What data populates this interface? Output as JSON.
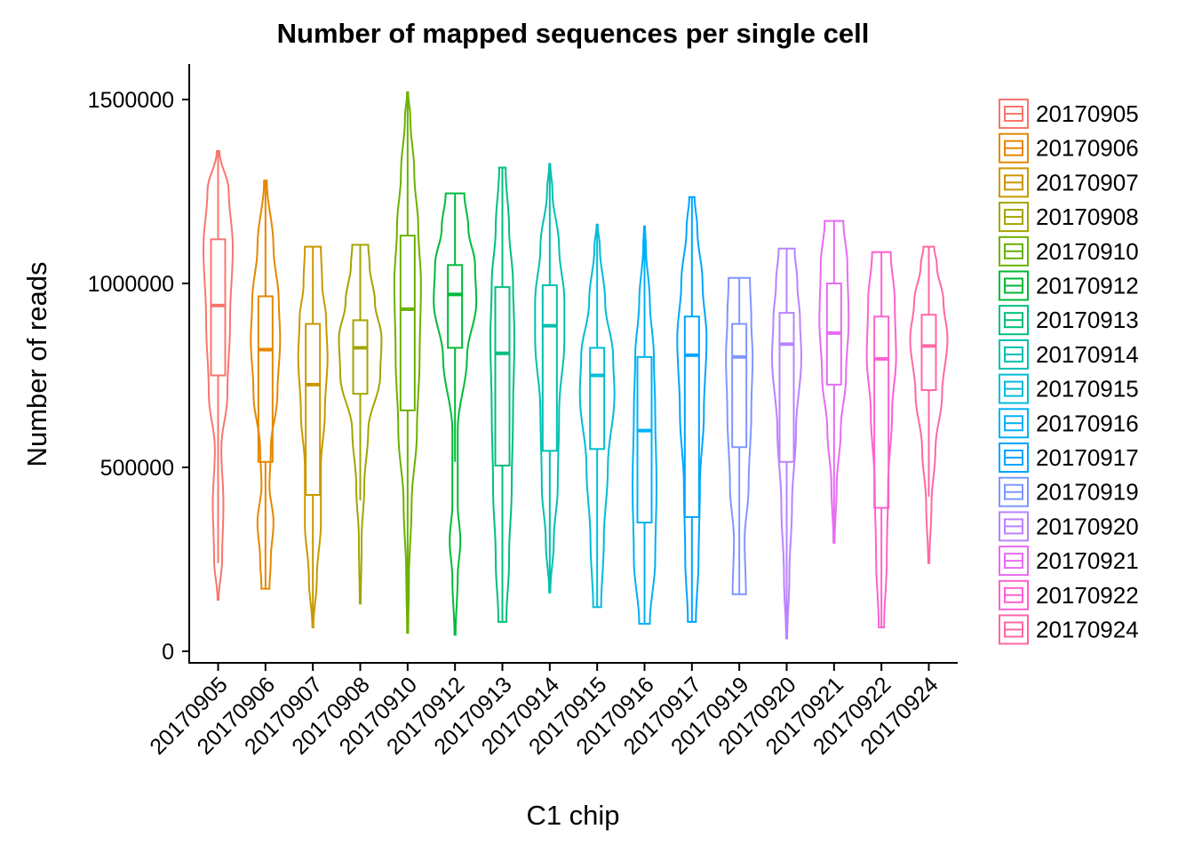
{
  "chart_data": {
    "type": "violin",
    "title": "Number of mapped sequences per single cell",
    "xlabel": "C1 chip",
    "ylabel": "Number of reads",
    "ylim": [
      -30000,
      1600000
    ],
    "yticks": [
      0,
      500000,
      1000000,
      1500000
    ],
    "ytick_labels": [
      "0",
      "500000",
      "1000000",
      "1500000"
    ],
    "legend_position": "right",
    "categories": [
      "20170905",
      "20170906",
      "20170907",
      "20170908",
      "20170910",
      "20170912",
      "20170913",
      "20170914",
      "20170915",
      "20170916",
      "20170917",
      "20170919",
      "20170920",
      "20170921",
      "20170922",
      "20170924"
    ],
    "colors": [
      "#F8766D",
      "#E58700",
      "#C99800",
      "#A3A500",
      "#6BB100",
      "#00BA38",
      "#00BF7D",
      "#00C0AF",
      "#00BCD8",
      "#00B0F6",
      "#00A5FF",
      "#7F96FF",
      "#B983FF",
      "#E76BF3",
      "#FD61D1",
      "#FF67A4"
    ],
    "series": [
      {
        "name": "20170905",
        "min": 140000,
        "q1": 750000,
        "median": 940000,
        "q3": 1120000,
        "max": 1360000,
        "whisker_low": 240000,
        "whisker_high": 1360000,
        "violin": [
          [
            140000,
            0.02
          ],
          [
            250000,
            0.15
          ],
          [
            400000,
            0.2
          ],
          [
            550000,
            0.12
          ],
          [
            700000,
            0.35
          ],
          [
            900000,
            0.45
          ],
          [
            1100000,
            0.55
          ],
          [
            1250000,
            0.4
          ],
          [
            1360000,
            0.05
          ]
        ]
      },
      {
        "name": "20170906",
        "min": 170000,
        "q1": 515000,
        "median": 820000,
        "q3": 965000,
        "max": 1280000,
        "whisker_low": 170000,
        "whisker_high": 1280000,
        "violin": [
          [
            170000,
            0.15
          ],
          [
            250000,
            0.2
          ],
          [
            350000,
            0.3
          ],
          [
            450000,
            0.15
          ],
          [
            550000,
            0.2
          ],
          [
            700000,
            0.45
          ],
          [
            850000,
            0.55
          ],
          [
            950000,
            0.5
          ],
          [
            1100000,
            0.3
          ],
          [
            1280000,
            0.05
          ]
        ]
      },
      {
        "name": "20170907",
        "min": 65000,
        "q1": 425000,
        "median": 725000,
        "q3": 890000,
        "max": 1100000,
        "whisker_low": 65000,
        "whisker_high": 1100000,
        "violin": [
          [
            65000,
            0.02
          ],
          [
            200000,
            0.15
          ],
          [
            350000,
            0.3
          ],
          [
            500000,
            0.3
          ],
          [
            650000,
            0.45
          ],
          [
            800000,
            0.55
          ],
          [
            900000,
            0.5
          ],
          [
            1000000,
            0.35
          ],
          [
            1100000,
            0.3
          ]
        ]
      },
      {
        "name": "20170908",
        "min": 130000,
        "q1": 700000,
        "median": 825000,
        "q3": 900000,
        "max": 1105000,
        "whisker_low": 410000,
        "whisker_high": 1105000,
        "violin": [
          [
            130000,
            0.02
          ],
          [
            300000,
            0.05
          ],
          [
            450000,
            0.15
          ],
          [
            600000,
            0.3
          ],
          [
            750000,
            0.75
          ],
          [
            850000,
            0.8
          ],
          [
            950000,
            0.55
          ],
          [
            1050000,
            0.35
          ],
          [
            1105000,
            0.3
          ]
        ]
      },
      {
        "name": "20170910",
        "min": 50000,
        "q1": 655000,
        "median": 930000,
        "q3": 1130000,
        "max": 1520000,
        "whisker_low": 50000,
        "whisker_high": 1520000,
        "violin": [
          [
            50000,
            0.02
          ],
          [
            200000,
            0.05
          ],
          [
            400000,
            0.15
          ],
          [
            600000,
            0.35
          ],
          [
            800000,
            0.45
          ],
          [
            1000000,
            0.5
          ],
          [
            1150000,
            0.4
          ],
          [
            1300000,
            0.25
          ],
          [
            1450000,
            0.1
          ],
          [
            1520000,
            0.02
          ]
        ]
      },
      {
        "name": "20170912",
        "min": 45000,
        "q1": 825000,
        "median": 970000,
        "q3": 1050000,
        "max": 1245000,
        "whisker_low": 515000,
        "whisker_high": 1245000,
        "violin": [
          [
            45000,
            0.02
          ],
          [
            200000,
            0.1
          ],
          [
            300000,
            0.2
          ],
          [
            400000,
            0.1
          ],
          [
            600000,
            0.1
          ],
          [
            800000,
            0.45
          ],
          [
            950000,
            0.8
          ],
          [
            1050000,
            0.75
          ],
          [
            1150000,
            0.5
          ],
          [
            1245000,
            0.35
          ]
        ]
      },
      {
        "name": "20170913",
        "min": 80000,
        "q1": 505000,
        "median": 810000,
        "q3": 990000,
        "max": 1315000,
        "whisker_low": 80000,
        "whisker_high": 1315000,
        "violin": [
          [
            80000,
            0.15
          ],
          [
            250000,
            0.25
          ],
          [
            450000,
            0.35
          ],
          [
            650000,
            0.4
          ],
          [
            850000,
            0.45
          ],
          [
            1000000,
            0.4
          ],
          [
            1150000,
            0.25
          ],
          [
            1315000,
            0.12
          ]
        ]
      },
      {
        "name": "20170914",
        "min": 160000,
        "q1": 545000,
        "median": 885000,
        "q3": 995000,
        "max": 1325000,
        "whisker_low": 160000,
        "whisker_high": 1325000,
        "violin": [
          [
            160000,
            0.02
          ],
          [
            300000,
            0.15
          ],
          [
            450000,
            0.3
          ],
          [
            650000,
            0.35
          ],
          [
            850000,
            0.55
          ],
          [
            950000,
            0.55
          ],
          [
            1100000,
            0.35
          ],
          [
            1250000,
            0.1
          ],
          [
            1325000,
            0.02
          ]
        ]
      },
      {
        "name": "20170915",
        "min": 120000,
        "q1": 550000,
        "median": 750000,
        "q3": 825000,
        "max": 1160000,
        "whisker_low": 120000,
        "whisker_high": 1160000,
        "violin": [
          [
            120000,
            0.15
          ],
          [
            300000,
            0.25
          ],
          [
            500000,
            0.4
          ],
          [
            700000,
            0.65
          ],
          [
            800000,
            0.6
          ],
          [
            950000,
            0.3
          ],
          [
            1100000,
            0.1
          ],
          [
            1160000,
            0.02
          ]
        ]
      },
      {
        "name": "20170916",
        "min": 75000,
        "q1": 350000,
        "median": 600000,
        "q3": 800000,
        "max": 1155000,
        "whisker_low": 75000,
        "whisker_high": 1155000,
        "violin": [
          [
            75000,
            0.2
          ],
          [
            250000,
            0.4
          ],
          [
            450000,
            0.45
          ],
          [
            650000,
            0.4
          ],
          [
            800000,
            0.35
          ],
          [
            950000,
            0.2
          ],
          [
            1100000,
            0.05
          ],
          [
            1155000,
            0.02
          ]
        ]
      },
      {
        "name": "20170917",
        "min": 80000,
        "q1": 365000,
        "median": 805000,
        "q3": 910000,
        "max": 1235000,
        "whisker_low": 80000,
        "whisker_high": 1235000,
        "violin": [
          [
            80000,
            0.15
          ],
          [
            250000,
            0.25
          ],
          [
            450000,
            0.3
          ],
          [
            650000,
            0.45
          ],
          [
            850000,
            0.55
          ],
          [
            1000000,
            0.4
          ],
          [
            1150000,
            0.2
          ],
          [
            1235000,
            0.1
          ]
        ]
      },
      {
        "name": "20170919",
        "min": 155000,
        "q1": 555000,
        "median": 800000,
        "q3": 890000,
        "max": 1015000,
        "whisker_low": 155000,
        "whisker_high": 1015000,
        "violin": [
          [
            155000,
            0.25
          ],
          [
            300000,
            0.2
          ],
          [
            450000,
            0.35
          ],
          [
            650000,
            0.45
          ],
          [
            800000,
            0.5
          ],
          [
            900000,
            0.45
          ],
          [
            1015000,
            0.4
          ]
        ]
      },
      {
        "name": "20170920",
        "min": 35000,
        "q1": 515000,
        "median": 835000,
        "q3": 920000,
        "max": 1095000,
        "whisker_low": 35000,
        "whisker_high": 1095000,
        "violin": [
          [
            35000,
            0.02
          ],
          [
            200000,
            0.1
          ],
          [
            400000,
            0.2
          ],
          [
            600000,
            0.35
          ],
          [
            800000,
            0.55
          ],
          [
            900000,
            0.5
          ],
          [
            1000000,
            0.4
          ],
          [
            1095000,
            0.3
          ]
        ]
      },
      {
        "name": "20170921",
        "min": 295000,
        "q1": 725000,
        "median": 865000,
        "q3": 1000000,
        "max": 1170000,
        "whisker_low": 295000,
        "whisker_high": 1170000,
        "violin": [
          [
            295000,
            0.02
          ],
          [
            450000,
            0.1
          ],
          [
            600000,
            0.25
          ],
          [
            750000,
            0.45
          ],
          [
            900000,
            0.55
          ],
          [
            1050000,
            0.5
          ],
          [
            1170000,
            0.35
          ]
        ]
      },
      {
        "name": "20170922",
        "min": 65000,
        "q1": 390000,
        "median": 795000,
        "q3": 910000,
        "max": 1085000,
        "whisker_low": 65000,
        "whisker_high": 1085000,
        "violin": [
          [
            65000,
            0.1
          ],
          [
            250000,
            0.2
          ],
          [
            450000,
            0.25
          ],
          [
            650000,
            0.4
          ],
          [
            800000,
            0.55
          ],
          [
            950000,
            0.5
          ],
          [
            1085000,
            0.35
          ]
        ]
      },
      {
        "name": "20170924",
        "min": 240000,
        "q1": 710000,
        "median": 830000,
        "q3": 915000,
        "max": 1100000,
        "whisker_low": 420000,
        "whisker_high": 1100000,
        "violin": [
          [
            240000,
            0.02
          ],
          [
            400000,
            0.1
          ],
          [
            550000,
            0.25
          ],
          [
            700000,
            0.5
          ],
          [
            850000,
            0.7
          ],
          [
            950000,
            0.55
          ],
          [
            1050000,
            0.3
          ],
          [
            1100000,
            0.2
          ]
        ]
      }
    ]
  }
}
